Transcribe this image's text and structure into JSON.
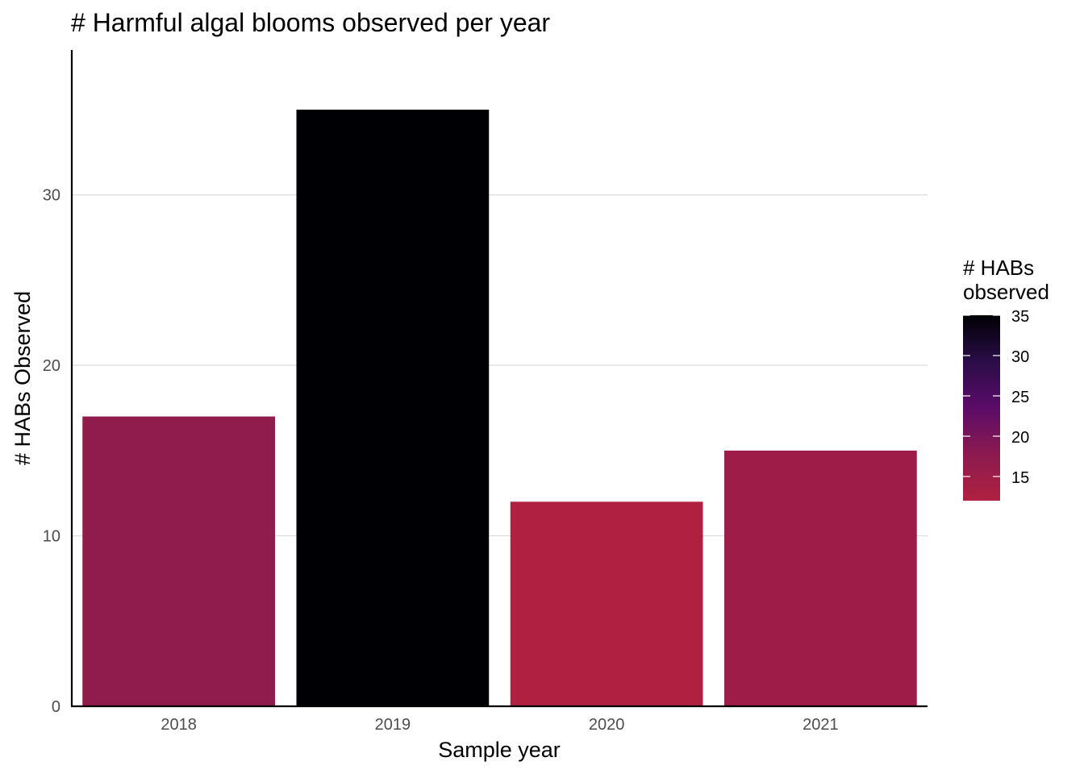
{
  "chart_data": {
    "type": "bar",
    "title": "# Harmful algal blooms observed per year",
    "xlabel": "Sample year",
    "ylabel": "# HABs Observed",
    "categories": [
      "2018",
      "2019",
      "2020",
      "2021"
    ],
    "values": [
      17,
      35,
      12,
      15
    ],
    "ylim": [
      0,
      38.5
    ],
    "yticks": [
      0,
      10,
      20,
      30
    ],
    "grid": "horizontal major",
    "legend": {
      "title_lines": [
        "# HABs",
        "observed"
      ],
      "type": "colorbar",
      "placement": "right",
      "range": [
        12,
        35
      ],
      "ticks": [
        15,
        20,
        25,
        30,
        35
      ],
      "gradient_colors": [
        "#b02141",
        "#8b1a4f",
        "#5b0c68",
        "#2a0d48",
        "#000004"
      ]
    }
  }
}
